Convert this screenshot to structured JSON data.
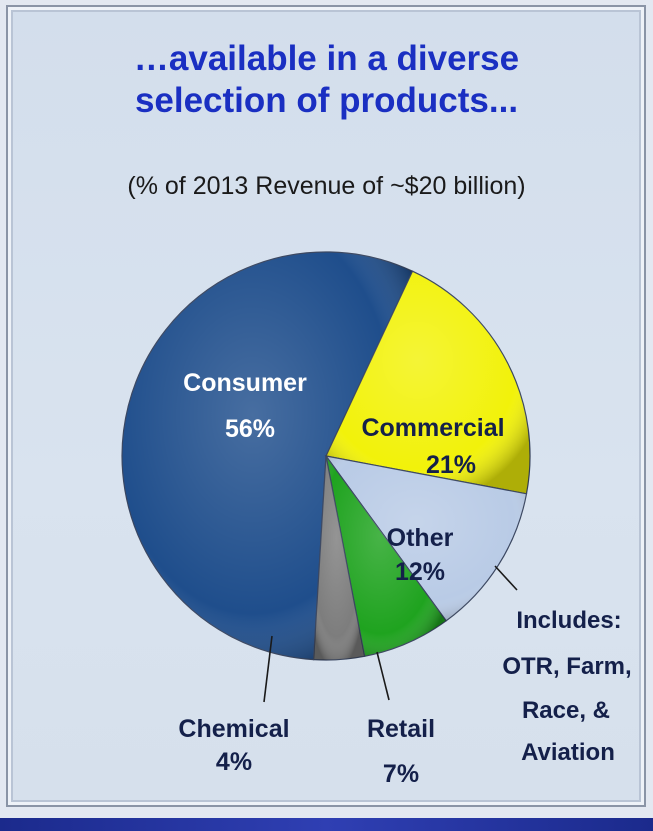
{
  "title": "…available in a diverse\nselection of products...",
  "subtitle": "(% of 2013 Revenue of ~$20 billion)",
  "chart_data": {
    "type": "pie",
    "slices": [
      {
        "name": "Consumer",
        "value": 56,
        "label": "56%",
        "color": "#1f4e8c"
      },
      {
        "name": "Commercial",
        "value": 21,
        "label": "21%",
        "color": "#f2f20a"
      },
      {
        "name": "Other",
        "value": 12,
        "label": "12%",
        "color": "#b9cbe6"
      },
      {
        "name": "Retail",
        "value": 7,
        "label": "7%",
        "color": "#1fa31f"
      },
      {
        "name": "Chemical",
        "value": 4,
        "label": "4%",
        "color": "#7d7d7d"
      }
    ],
    "annotation_lines": [
      "Includes:",
      "OTR, Farm,",
      "Race, &",
      "Aviation"
    ]
  }
}
